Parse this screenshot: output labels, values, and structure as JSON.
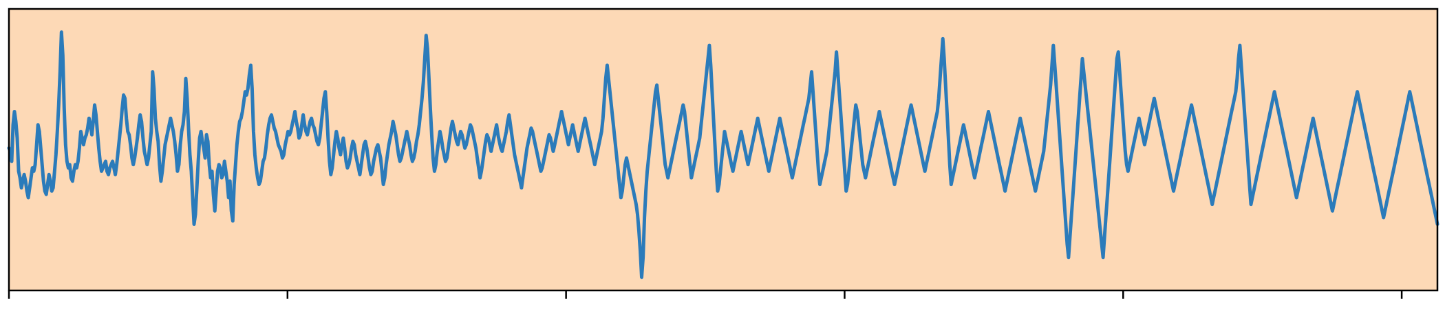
{
  "chart_data": {
    "type": "line",
    "title": "",
    "xlabel": "",
    "ylabel": "",
    "xlim": [
      0,
      1020
    ],
    "ylim": [
      -4.2,
      4.3
    ],
    "grid": false,
    "legend": "none",
    "colors": {
      "plot_background": "#fdd9b6",
      "line": "#2b7bba",
      "axes": "#000000"
    },
    "x_ticks": [
      0,
      200,
      400,
      600,
      800,
      1000
    ],
    "x_tick_labels": [],
    "series": [
      {
        "name": "",
        "values": [
          0.1,
          0.0,
          -0.3,
          0.8,
          1.2,
          0.9,
          0.4,
          -0.6,
          -0.8,
          -1.1,
          -0.9,
          -0.7,
          -0.9,
          -1.2,
          -1.4,
          -1.1,
          -0.8,
          -0.5,
          -0.6,
          -0.4,
          0.2,
          0.8,
          0.6,
          0.1,
          -0.4,
          -0.9,
          -1.2,
          -1.3,
          -1.0,
          -0.7,
          -0.9,
          -1.2,
          -1.1,
          -0.6,
          -0.1,
          0.6,
          1.4,
          2.4,
          3.6,
          2.9,
          1.3,
          0.2,
          -0.3,
          -0.5,
          -0.4,
          -0.8,
          -0.9,
          -0.6,
          -0.4,
          -0.5,
          -0.3,
          0.1,
          0.6,
          0.4,
          0.2,
          0.4,
          0.5,
          0.7,
          1.0,
          0.8,
          0.5,
          0.9,
          1.4,
          1.1,
          0.6,
          0.1,
          -0.3,
          -0.6,
          -0.5,
          -0.4,
          -0.3,
          -0.6,
          -0.7,
          -0.5,
          -0.4,
          -0.3,
          -0.5,
          -0.7,
          -0.4,
          0.0,
          0.4,
          0.8,
          1.3,
          1.7,
          1.6,
          1.0,
          0.6,
          0.5,
          0.2,
          -0.2,
          -0.4,
          -0.2,
          0.1,
          0.4,
          0.8,
          1.1,
          0.9,
          0.4,
          0.0,
          -0.2,
          -0.4,
          -0.2,
          0.2,
          0.6,
          2.4,
          1.9,
          1.0,
          0.6,
          0.3,
          -0.4,
          -0.9,
          -0.6,
          -0.2,
          0.2,
          0.4,
          0.6,
          0.8,
          1.0,
          0.8,
          0.6,
          0.3,
          -0.1,
          -0.6,
          -0.4,
          0.2,
          0.6,
          0.8,
          1.2,
          2.2,
          1.6,
          0.7,
          -0.1,
          -0.6,
          -1.4,
          -2.2,
          -1.9,
          -1.1,
          -0.3,
          0.4,
          0.6,
          0.3,
          0.1,
          -0.2,
          0.5,
          0.3,
          -0.4,
          -0.8,
          -0.6,
          -1.3,
          -1.8,
          -1.2,
          -0.6,
          -0.4,
          -0.5,
          -0.8,
          -0.7,
          -0.3,
          -0.6,
          -0.9,
          -1.4,
          -0.9,
          -1.8,
          -2.1,
          -1.0,
          -0.4,
          0.2,
          0.6,
          0.9,
          1.0,
          1.2,
          1.5,
          1.8,
          1.7,
          1.9,
          2.3,
          2.6,
          1.9,
          0.6,
          -0.1,
          -0.5,
          -0.8,
          -1.0,
          -0.9,
          -0.6,
          -0.3,
          -0.2,
          0.1,
          0.5,
          0.8,
          1.0,
          1.1,
          0.9,
          0.7,
          0.6,
          0.4,
          0.2,
          0.1,
          0.0,
          -0.2,
          -0.1,
          0.2,
          0.4,
          0.6,
          0.5,
          0.6,
          0.8,
          1.0,
          1.2,
          0.9,
          0.7,
          0.4,
          0.5,
          0.8,
          1.1,
          0.8,
          0.6,
          0.5,
          0.7,
          0.9,
          1.0,
          0.8,
          0.7,
          0.5,
          0.3,
          0.2,
          0.4,
          0.8,
          1.2,
          1.6,
          1.8,
          1.2,
          0.4,
          -0.3,
          -0.7,
          -0.5,
          -0.1,
          0.3,
          0.6,
          0.4,
          0.1,
          -0.1,
          0.2,
          0.4,
          0.1,
          -0.3,
          -0.5,
          -0.4,
          -0.2,
          0.1,
          0.3,
          0.2,
          -0.1,
          -0.3,
          -0.5,
          -0.7,
          -0.4,
          -0.1,
          0.2,
          0.3,
          0.1,
          -0.2,
          -0.5,
          -0.7,
          -0.6,
          -0.3,
          -0.1,
          0.1,
          0.2,
          0.0,
          -0.2,
          -0.6,
          -1.0,
          -0.8,
          -0.4,
          -0.1,
          0.2,
          0.4,
          0.6,
          0.9,
          0.7,
          0.5,
          0.2,
          -0.1,
          -0.3,
          -0.2,
          0.0,
          0.2,
          0.4,
          0.6,
          0.4,
          0.2,
          -0.1,
          -0.3,
          -0.2,
          0.0,
          0.3,
          0.5,
          0.8,
          1.2,
          1.6,
          2.1,
          2.8,
          3.5,
          3.1,
          2.2,
          1.3,
          0.5,
          -0.2,
          -0.6,
          -0.4,
          0.0,
          0.3,
          0.6,
          0.4,
          0.1,
          -0.1,
          -0.3,
          -0.2,
          0.1,
          0.4,
          0.7,
          0.9,
          0.7,
          0.5,
          0.3,
          0.2,
          0.4,
          0.6,
          0.5,
          0.3,
          0.1,
          0.2,
          0.4,
          0.6,
          0.8,
          0.7,
          0.5,
          0.3,
          0.1,
          -0.2,
          -0.5,
          -0.8,
          -0.6,
          -0.3,
          0.0,
          0.3,
          0.5,
          0.4,
          0.2,
          0.0,
          0.2,
          0.4,
          0.6,
          0.8,
          0.5,
          0.3,
          0.1,
          0.0,
          0.2,
          0.4,
          0.6,
          0.9,
          1.1,
          0.8,
          0.5,
          0.2,
          -0.1,
          -0.3,
          -0.5,
          -0.7,
          -0.9,
          -1.1,
          -0.8,
          -0.5,
          -0.2,
          0.1,
          0.3,
          0.5,
          0.7,
          0.6,
          0.4,
          0.2,
          0.0,
          -0.2,
          -0.4,
          -0.6,
          -0.5,
          -0.3,
          -0.1,
          0.1,
          0.3,
          0.5,
          0.4,
          0.2,
          0.0,
          0.2,
          0.4,
          0.6,
          0.8,
          1.0,
          1.2,
          1.0,
          0.8,
          0.6,
          0.4,
          0.2,
          0.4,
          0.6,
          0.8,
          0.6,
          0.4,
          0.2,
          0.0,
          0.2,
          0.4,
          0.6,
          0.8,
          1.0,
          0.8,
          0.6,
          0.4,
          0.2,
          0.0,
          -0.2,
          -0.4,
          -0.2,
          0.0,
          0.2,
          0.4,
          0.6,
          1.0,
          1.6,
          2.2,
          2.6,
          2.2,
          1.8,
          1.4,
          1.0,
          0.6,
          0.2,
          -0.2,
          -0.6,
          -1.0,
          -1.4,
          -1.2,
          -0.8,
          -0.4,
          -0.2,
          -0.4,
          -0.6,
          -0.8,
          -1.0,
          -1.2,
          -1.4,
          -1.6,
          -1.9,
          -2.4,
          -3.0,
          -3.8,
          -3.2,
          -2.0,
          -1.2,
          -0.6,
          -0.2,
          0.2,
          0.6,
          1.0,
          1.4,
          1.8,
          2.0,
          1.6,
          1.2,
          0.8,
          0.4,
          0.0,
          -0.4,
          -0.6,
          -0.8,
          -0.6,
          -0.4,
          -0.2,
          0.0,
          0.2,
          0.4,
          0.6,
          0.8,
          1.0,
          1.2,
          1.4,
          1.2,
          0.8,
          0.4,
          0.0,
          -0.4,
          -0.8,
          -0.6,
          -0.4,
          -0.2,
          0.0,
          0.2,
          0.4,
          0.8,
          1.2,
          1.6,
          2.0,
          2.4,
          2.8,
          3.2,
          2.6,
          1.8,
          1.0,
          0.2,
          -0.6,
          -1.2,
          -1.0,
          -0.6,
          -0.2,
          0.2,
          0.6,
          0.4,
          0.2,
          0.0,
          -0.2,
          -0.4,
          -0.6,
          -0.4,
          -0.2,
          0.0,
          0.2,
          0.4,
          0.6,
          0.4,
          0.2,
          0.0,
          -0.2,
          -0.4,
          -0.2,
          0.0,
          0.2,
          0.4,
          0.6,
          0.8,
          1.0,
          0.8,
          0.6,
          0.4,
          0.2,
          0.0,
          -0.2,
          -0.4,
          -0.6,
          -0.4,
          -0.2,
          0.0,
          0.2,
          0.4,
          0.6,
          0.8,
          1.0,
          0.8,
          0.6,
          0.4,
          0.2,
          0.0,
          -0.2,
          -0.4,
          -0.6,
          -0.8,
          -0.6,
          -0.4,
          -0.2,
          0.0,
          0.2,
          0.4,
          0.6,
          0.8,
          1.0,
          1.2,
          1.4,
          1.6,
          2.0,
          2.4,
          1.8,
          1.2,
          0.6,
          0.0,
          -0.6,
          -1.0,
          -0.8,
          -0.6,
          -0.4,
          -0.2,
          0.0,
          0.4,
          0.8,
          1.2,
          1.6,
          2.0,
          2.4,
          3.0,
          2.4,
          1.8,
          1.2,
          0.6,
          0.0,
          -0.6,
          -1.2,
          -1.0,
          -0.6,
          -0.2,
          0.2,
          0.6,
          1.0,
          1.4,
          1.2,
          0.8,
          0.4,
          0.0,
          -0.4,
          -0.6,
          -0.8,
          -0.6,
          -0.4,
          -0.2,
          0.0,
          0.2,
          0.4,
          0.6,
          0.8,
          1.0,
          1.2,
          1.0,
          0.8,
          0.6,
          0.4,
          0.2,
          0.0,
          -0.2,
          -0.4,
          -0.6,
          -0.8,
          -1.0,
          -0.8,
          -0.6,
          -0.4,
          -0.2,
          0.0,
          0.2,
          0.4,
          0.6,
          0.8,
          1.0,
          1.2,
          1.4,
          1.2,
          1.0,
          0.8,
          0.6,
          0.4,
          0.2,
          0.0,
          -0.2,
          -0.4,
          -0.6,
          -0.4,
          -0.2,
          0.0,
          0.2,
          0.4,
          0.6,
          0.8,
          1.0,
          1.2,
          1.6,
          2.2,
          2.8,
          3.4,
          2.8,
          2.0,
          1.2,
          0.4,
          -0.4,
          -1.0,
          -0.8,
          -0.6,
          -0.4,
          -0.2,
          0.0,
          0.2,
          0.4,
          0.6,
          0.8,
          0.6,
          0.4,
          0.2,
          0.0,
          -0.2,
          -0.4,
          -0.6,
          -0.8,
          -0.6,
          -0.4,
          -0.2,
          0.0,
          0.2,
          0.4,
          0.6,
          0.8,
          1.0,
          1.2,
          1.0,
          0.8,
          0.6,
          0.4,
          0.2,
          0.0,
          -0.2,
          -0.4,
          -0.6,
          -0.8,
          -1.0,
          -1.2,
          -1.0,
          -0.8,
          -0.6,
          -0.4,
          -0.2,
          0.0,
          0.2,
          0.4,
          0.6,
          0.8,
          1.0,
          0.8,
          0.6,
          0.4,
          0.2,
          0.0,
          -0.2,
          -0.4,
          -0.6,
          -0.8,
          -1.0,
          -1.2,
          -1.0,
          -0.8,
          -0.6,
          -0.4,
          -0.2,
          0.0,
          0.4,
          0.8,
          1.2,
          1.6,
          2.0,
          2.6,
          3.2,
          2.6,
          2.0,
          1.4,
          0.8,
          0.2,
          -0.4,
          -1.0,
          -1.6,
          -2.2,
          -2.8,
          -3.2,
          -2.6,
          -2.0,
          -1.4,
          -0.8,
          -0.2,
          0.4,
          1.0,
          1.6,
          2.2,
          2.8,
          2.4,
          2.0,
          1.6,
          1.2,
          0.8,
          0.4,
          0.0,
          -0.4,
          -0.8,
          -1.2,
          -1.6,
          -2.0,
          -2.4,
          -2.8,
          -3.2,
          -2.6,
          -2.0,
          -1.4,
          -0.8,
          -0.2,
          0.4,
          1.0,
          1.6,
          2.2,
          2.8,
          3.0,
          2.4,
          1.8,
          1.2,
          0.6,
          0.0,
          -0.4,
          -0.6,
          -0.4,
          -0.2,
          0.0,
          0.2,
          0.4,
          0.6,
          0.8,
          1.0,
          0.8,
          0.6,
          0.4,
          0.2,
          0.4,
          0.6,
          0.8,
          1.0,
          1.2,
          1.4,
          1.6,
          1.4,
          1.2,
          1.0,
          0.8,
          0.6,
          0.4,
          0.2,
          0.0,
          -0.2,
          -0.4,
          -0.6,
          -0.8,
          -1.0,
          -1.2,
          -1.0,
          -0.8,
          -0.6,
          -0.4,
          -0.2,
          0.0,
          0.2,
          0.4,
          0.6,
          0.8,
          1.0,
          1.2,
          1.4,
          1.2,
          1.0,
          0.8,
          0.6,
          0.4,
          0.2,
          0.0,
          -0.2,
          -0.4,
          -0.6,
          -0.8,
          -1.0,
          -1.2,
          -1.4,
          -1.6,
          -1.4,
          -1.2,
          -1.0,
          -0.8,
          -0.6,
          -0.4,
          -0.2,
          0.0,
          0.2,
          0.4,
          0.6,
          0.8,
          1.0,
          1.2,
          1.4,
          1.6,
          1.8,
          2.2,
          2.8,
          3.2,
          2.6,
          2.0,
          1.4,
          0.8,
          0.2,
          -0.4,
          -1.0,
          -1.6,
          -1.4,
          -1.2,
          -1.0,
          -0.8,
          -0.6,
          -0.4,
          -0.2,
          0.0,
          0.2,
          0.4,
          0.6,
          0.8,
          1.0,
          1.2,
          1.4,
          1.6,
          1.8,
          1.6,
          1.4,
          1.2,
          1.0,
          0.8,
          0.6,
          0.4,
          0.2,
          0.0,
          -0.2,
          -0.4,
          -0.6,
          -0.8,
          -1.0,
          -1.2,
          -1.4,
          -1.2,
          -1.0,
          -0.8,
          -0.6,
          -0.4,
          -0.2,
          0.0,
          0.2,
          0.4,
          0.6,
          0.8,
          1.0,
          0.8,
          0.6,
          0.4,
          0.2,
          0.0,
          -0.2,
          -0.4,
          -0.6,
          -0.8,
          -1.0,
          -1.2,
          -1.4,
          -1.6,
          -1.8,
          -1.6,
          -1.4,
          -1.2,
          -1.0,
          -0.8,
          -0.6,
          -0.4,
          -0.2,
          0.0,
          0.2,
          0.4,
          0.6,
          0.8,
          1.0,
          1.2,
          1.4,
          1.6,
          1.8,
          1.6,
          1.4,
          1.2,
          1.0,
          0.8,
          0.6,
          0.4,
          0.2,
          0.0,
          -0.2,
          -0.4,
          -0.6,
          -0.8,
          -1.0,
          -1.2,
          -1.4,
          -1.6,
          -1.8,
          -2.0,
          -1.8,
          -1.6,
          -1.4,
          -1.2,
          -1.0,
          -0.8,
          -0.6,
          -0.4,
          -0.2,
          0.0,
          0.2,
          0.4,
          0.6,
          0.8,
          1.0,
          1.2,
          1.4,
          1.6,
          1.8,
          1.6,
          1.4,
          1.2,
          1.0,
          0.8,
          0.6,
          0.4,
          0.2,
          0.0,
          -0.2,
          -0.4,
          -0.6,
          -0.8,
          -1.0,
          -1.2,
          -1.4,
          -1.6,
          -1.8,
          -2.0,
          -2.2
        ]
      }
    ]
  }
}
